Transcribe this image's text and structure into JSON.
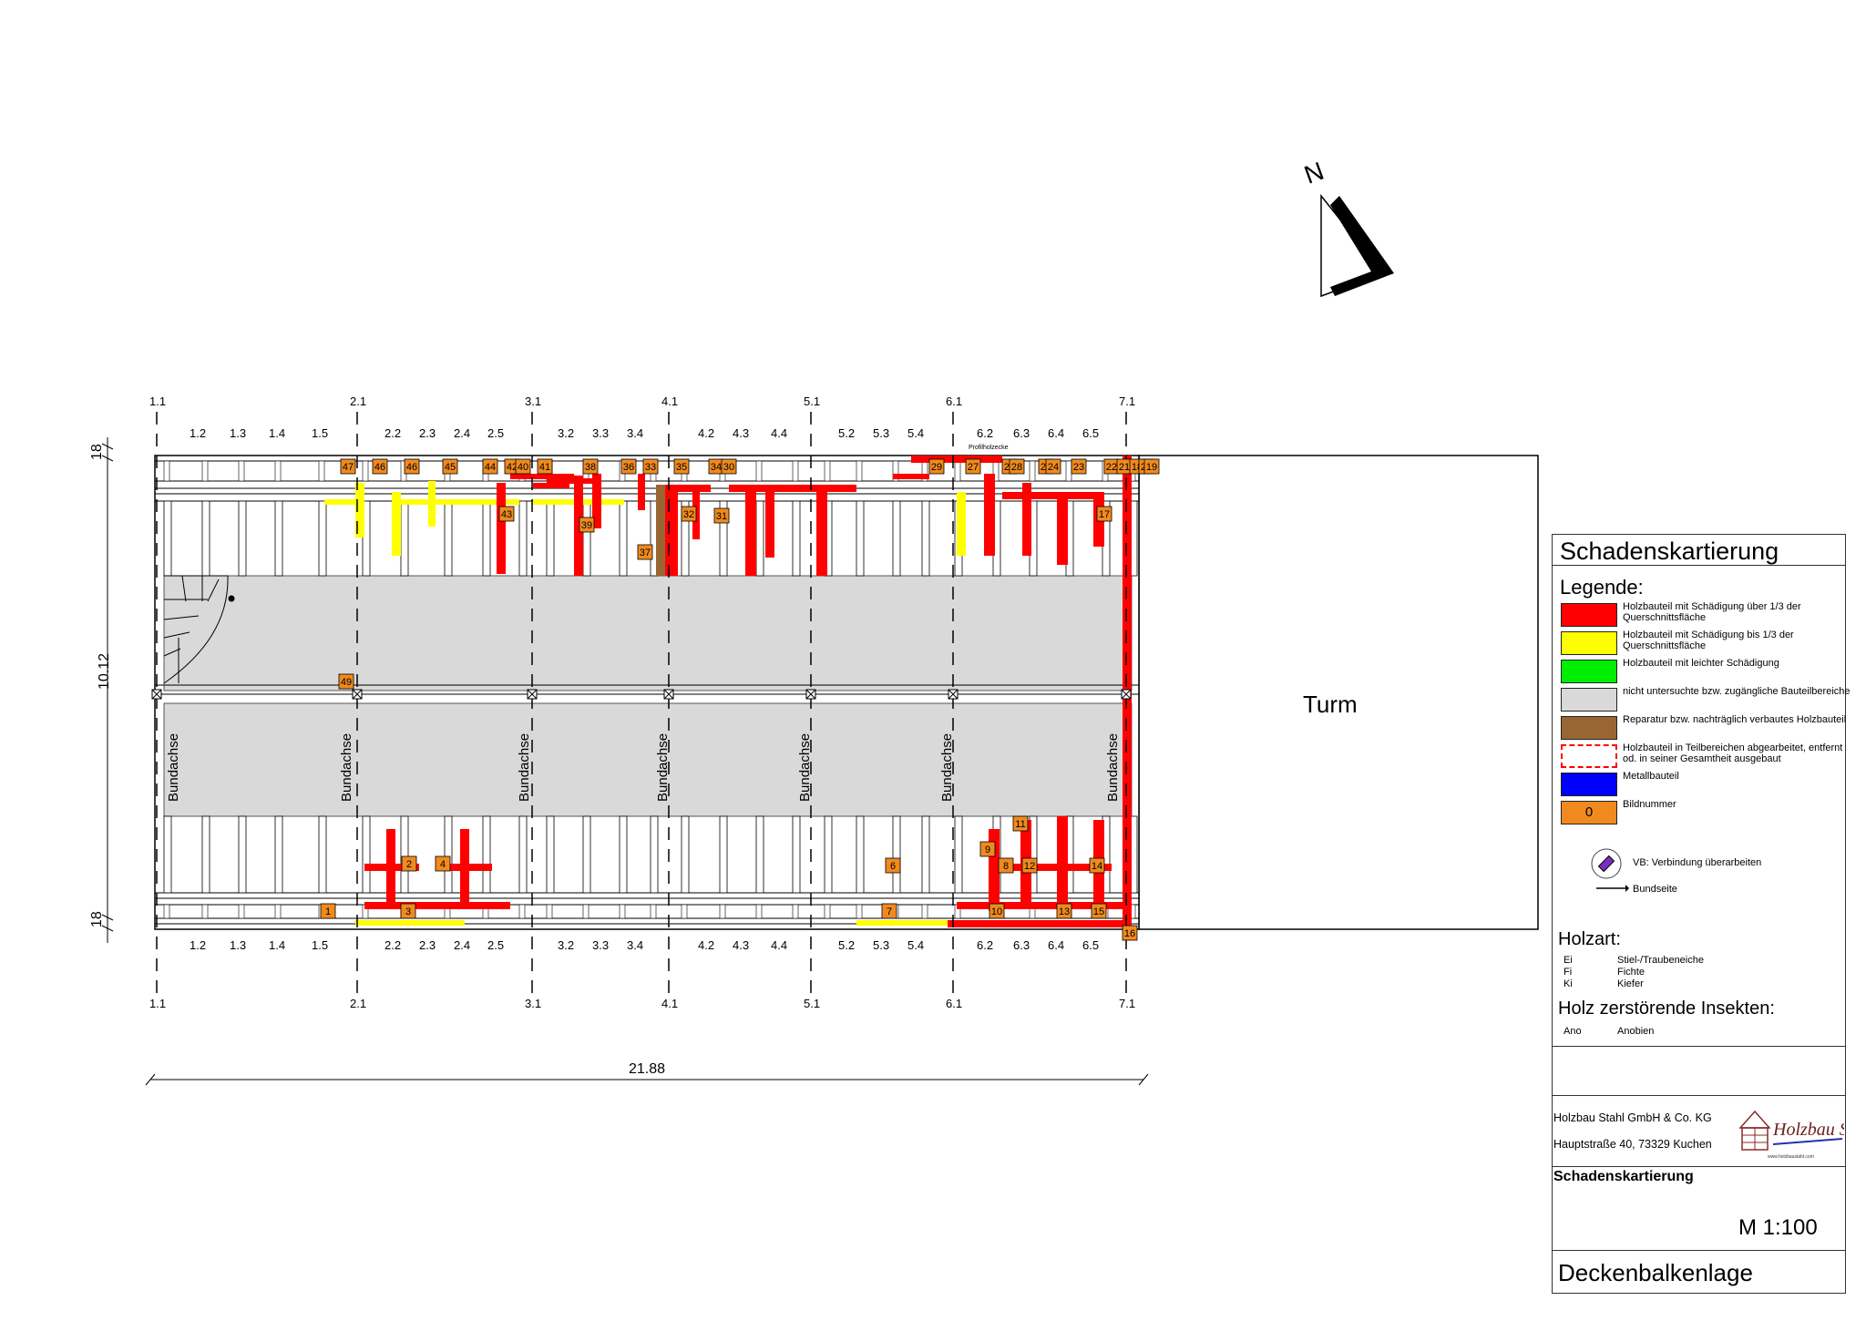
{
  "axes": {
    "top_main": [
      "1.1",
      "2.1",
      "3.1",
      "4.1",
      "5.1",
      "6.1",
      "7.1"
    ],
    "bottom_main": [
      "1.1",
      "2.1",
      "3.1",
      "4.1",
      "5.1",
      "6.1",
      "7.1"
    ],
    "sub_labels": [
      "1.2",
      "1.3",
      "1.4",
      "1.5",
      "2.2",
      "2.3",
      "2.4",
      "2.5",
      "3.2",
      "3.3",
      "3.4",
      "4.2",
      "4.3",
      "4.4",
      "5.2",
      "5.3",
      "5.4",
      "6.2",
      "6.3",
      "6.4",
      "6.5"
    ]
  },
  "dimensions": {
    "left_top": "18",
    "left_middle": "10.12",
    "left_bottom": "18",
    "bottom_total": "21.88"
  },
  "plan_labels": {
    "bundachse": "Bundachse",
    "turm": "Turm",
    "profil_note": "Profilholzecke"
  },
  "image_numbers": {
    "top_row": [
      "47",
      "46",
      "46",
      "45",
      "44",
      "42",
      "40",
      "41",
      "38",
      "36",
      "33",
      "35",
      "34",
      "30",
      "29",
      "27",
      "26",
      "28",
      "25",
      "24",
      "23",
      "22",
      "21",
      "18",
      "20",
      "19"
    ],
    "top_lower": [
      "43",
      "39",
      "37",
      "32",
      "31",
      "17"
    ],
    "middle": [
      "49"
    ],
    "bottom_upper": [
      "2",
      "4",
      "6",
      "11",
      "9",
      "8",
      "12",
      "14"
    ],
    "bottom_row": [
      "1",
      "3",
      "7",
      "10",
      "13",
      "15",
      "16"
    ]
  },
  "legend": {
    "heading": "Schadenskartierung",
    "subheading": "Legende:",
    "items": [
      {
        "color": "#ff0000",
        "label": "Holzbauteil mit Schädigung über 1/3 der Querschnittsfläche"
      },
      {
        "color": "#ffff00",
        "label": "Holzbauteil mit Schädigung bis 1/3 der Querschnittsfläche"
      },
      {
        "color": "#00ee00",
        "label": "Holzbauteil mit leichter Schädigung"
      },
      {
        "color": "#d9d9d9",
        "label": "nicht untersuchte bzw. zugängliche Bauteilbereiche"
      },
      {
        "color": "#996633",
        "label": "Reparatur bzw. nachträglich verbautes Holzbauteil"
      },
      {
        "color": "#ffffff",
        "label": "Holzbauteil in Teilbereichen abgearbeitet, entfernt od. in seiner Gesamtheit ausgebaut"
      },
      {
        "color": "#0000ff",
        "label": "Metallbauteil"
      },
      {
        "color": "#f08a1e",
        "label": "Bildnummer",
        "swatch_text": "0"
      }
    ],
    "vb_label": "VB: Verbindung überarbeiten",
    "bundseite_label": "Bundseite"
  },
  "holzart": {
    "heading": "Holzart:",
    "rows": [
      {
        "code": "Ei",
        "name": "Stiel-/Traubeneiche"
      },
      {
        "code": "Fi",
        "name": "Fichte"
      },
      {
        "code": "Ki",
        "name": "Kiefer"
      }
    ]
  },
  "insekten": {
    "heading": "Holz zerstörende Insekten:",
    "rows": [
      {
        "code": "Ano",
        "name": "Anobien"
      }
    ]
  },
  "title_block": {
    "company": "Holzbau Stahl GmbH & Co. KG",
    "address": "Hauptstraße 40, 73329 Kuchen",
    "logo_text": "Holzbau Stahl",
    "logo_url": "www.holzbaustahl.com",
    "subject": "Schadenskartierung",
    "scale": "M 1:100",
    "drawing_title": "Deckenbalkenlage"
  },
  "north_label": "N",
  "colors": {
    "damage_severe": "#ff0000",
    "damage_light": "#ffff00",
    "not_examined": "#d9d9d9",
    "repair": "#996633",
    "image_marker": "#f08a1e"
  }
}
